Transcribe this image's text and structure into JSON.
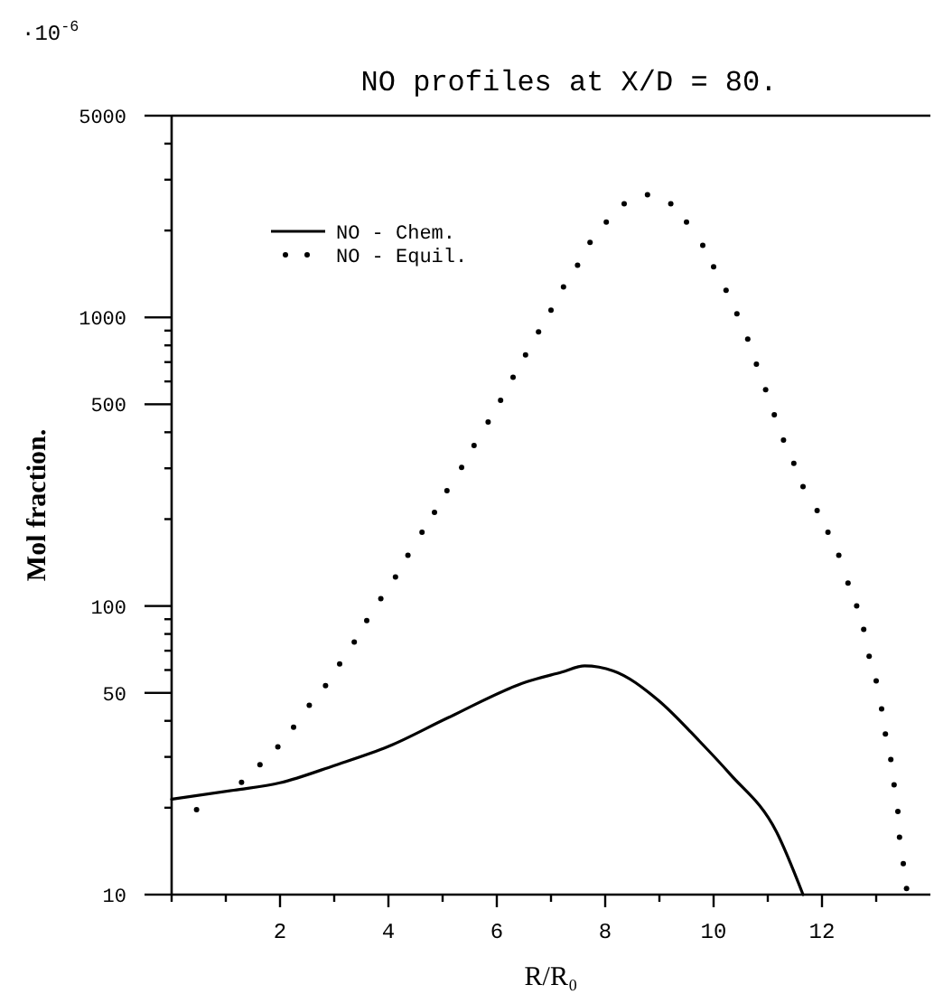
{
  "chart_data": {
    "type": "line",
    "title": "NO profiles at X/D = 80.",
    "xlabel": "R/R₀",
    "ylabel": "Mol fraction.",
    "annotations": [
      "·10$^{-6}$"
    ],
    "log": "y",
    "legend": "top left",
    "grid": false,
    "xlim": [
      0,
      14
    ],
    "xticks": [
      {
        "value": 0,
        "label": null
      },
      {
        "value": 1,
        "label": null
      },
      2,
      {
        "value": 3,
        "label": null
      },
      4,
      {
        "value": 5,
        "label": null
      },
      6,
      {
        "value": 7,
        "label": null
      },
      8,
      {
        "value": 9,
        "label": null
      },
      10,
      {
        "value": 11,
        "label": null
      },
      12,
      {
        "value": 13,
        "label": null
      }
    ],
    "ylim": [
      10,
      5000
    ],
    "yticks": [
      10,
      {
        "value": 20,
        "label": null
      },
      {
        "value": 30,
        "label": null
      },
      {
        "value": 40,
        "label": null
      },
      50,
      {
        "value": 60,
        "label": null
      },
      {
        "value": 70,
        "label": null
      },
      {
        "value": 80,
        "label": null
      },
      {
        "value": 90,
        "label": null
      },
      100,
      {
        "value": 200,
        "label": null
      },
      {
        "value": 300,
        "label": null
      },
      {
        "value": 400,
        "label": null
      },
      500,
      {
        "value": 600,
        "label": null
      },
      {
        "value": 700,
        "label": null
      },
      {
        "value": 800,
        "label": null
      },
      {
        "value": 900,
        "label": null
      },
      1000,
      {
        "value": 2000,
        "label": null
      },
      {
        "value": 3000,
        "label": null
      },
      {
        "value": 4000,
        "label": null
      },
      5000
    ],
    "series": [
      {
        "name": "NO - Chem.",
        "line_style": "solid",
        "marker": "none",
        "color": "#000000",
        "x": [
          0,
          1.15,
          2,
          3,
          4,
          5.1,
          6.55,
          7.2,
          7.62,
          8.15,
          8.97,
          9.74,
          10.3,
          11.16,
          11.65
        ],
        "values": [
          21.4,
          23,
          24.4,
          28,
          32.6,
          41,
          54.6,
          59,
          62,
          59.6,
          47.3,
          34,
          26.2,
          16.5,
          10
        ]
      },
      {
        "name": "NO - Equil.",
        "type": "scatter",
        "marker": "circle",
        "color": "#000000",
        "x": [
          0.46,
          1.29,
          1.63,
          1.96,
          2.25,
          2.54,
          2.84,
          3.1,
          3.37,
          3.6,
          3.86,
          4.13,
          4.36,
          4.62,
          4.85,
          5.08,
          5.35,
          5.58,
          5.84,
          6.07,
          6.3,
          6.53,
          6.77,
          7.0,
          7.23,
          7.49,
          7.72,
          8.02,
          8.35,
          8.78,
          9.21,
          9.5,
          9.8,
          10.0,
          10.23,
          10.43,
          10.63,
          10.79,
          10.96,
          11.12,
          11.29,
          11.48,
          11.65,
          11.91,
          12.11,
          12.31,
          12.48,
          12.64,
          12.77,
          12.87,
          13.0,
          13.1,
          13.17,
          13.27,
          13.33,
          13.4,
          13.43,
          13.5,
          13.56
        ],
        "values": [
          19.7,
          24.5,
          28.2,
          32.5,
          38,
          45.3,
          53,
          63,
          75,
          89,
          106,
          126,
          150,
          180,
          211,
          251,
          302,
          360,
          434,
          516,
          620,
          741,
          891,
          1060,
          1276,
          1515,
          1820,
          2140,
          2477,
          2660,
          2477,
          2140,
          1778,
          1496,
          1241,
          1029,
          841,
          688,
          562,
          460,
          376,
          312,
          259,
          214,
          180,
          150,
          120,
          100,
          83,
          67,
          55,
          44,
          36,
          29.4,
          24,
          19.4,
          15.8,
          12.8,
          10.5
        ]
      }
    ]
  }
}
